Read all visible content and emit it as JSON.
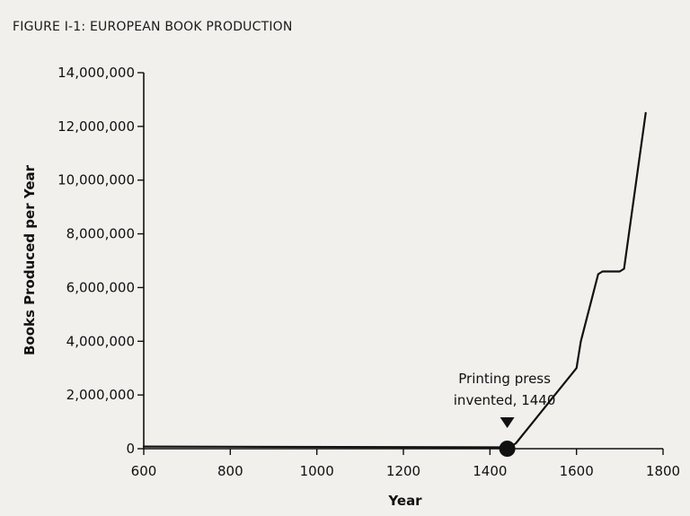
{
  "figure_title": "FIGURE I-1: EUROPEAN BOOK PRODUCTION",
  "chart_data": {
    "type": "line",
    "xlabel": "Year",
    "ylabel": "Books Produced per Year",
    "xlim": [
      600,
      1800
    ],
    "ylim": [
      0,
      14000000
    ],
    "x_ticks": [
      600,
      800,
      1000,
      1200,
      1400,
      1600,
      1800
    ],
    "x_tick_labels": [
      "600",
      "800",
      "1000",
      "1200",
      "1400",
      "1600",
      "1800"
    ],
    "y_ticks": [
      0,
      2000000,
      4000000,
      6000000,
      8000000,
      10000000,
      12000000,
      14000000
    ],
    "y_tick_labels": [
      "0",
      "2,000,000",
      "4,000,000",
      "6,000,000",
      "8,000,000",
      "10,000,000",
      "12,000,000",
      "14,000,000"
    ],
    "grid": false,
    "series": [
      {
        "x": [
          600,
          1440,
          1450,
          1460,
          1500,
          1550,
          1600,
          1610,
          1650,
          1660,
          1700,
          1710,
          1760
        ],
        "y": [
          80000,
          50000,
          100000,
          200000,
          1000000,
          2000000,
          3000000,
          4000000,
          6500000,
          6600000,
          6600000,
          6700000,
          12500000
        ]
      }
    ],
    "annotations": [
      {
        "lines": [
          "Printing press",
          "invented, 1440"
        ],
        "x": 1440,
        "y": 0,
        "marker": "filled-circle",
        "pointer": "down-triangle"
      }
    ]
  }
}
